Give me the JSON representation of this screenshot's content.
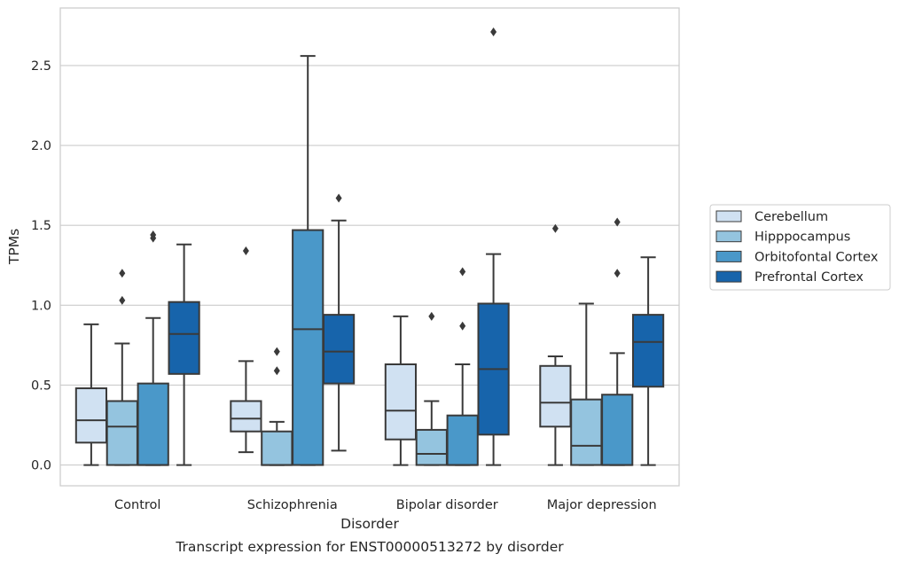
{
  "chart_data": {
    "type": "box",
    "title": "Transcript expression for ENST00000513272 by disorder",
    "xlabel": "Disorder",
    "ylabel": "TPMs",
    "ylim": [
      -0.13,
      2.86
    ],
    "yticks": [
      "0.0",
      "0.5",
      "1.0",
      "1.5",
      "2.0",
      "2.5"
    ],
    "grid": true,
    "legend_position": "right",
    "categories": [
      "Control",
      "Schizophrenia",
      "Bipolar disorder",
      "Major depression"
    ],
    "series": [
      {
        "name": "Cerebellum",
        "color": "#d0e1f2",
        "boxes": [
          {
            "whislo": 0.0,
            "q1": 0.14,
            "med": 0.28,
            "q3": 0.48,
            "whishi": 0.88,
            "fliers": []
          },
          {
            "whislo": 0.08,
            "q1": 0.21,
            "med": 0.29,
            "q3": 0.4,
            "whishi": 0.65,
            "fliers": [
              1.34
            ]
          },
          {
            "whislo": 0.0,
            "q1": 0.16,
            "med": 0.34,
            "q3": 0.63,
            "whishi": 0.93,
            "fliers": []
          },
          {
            "whislo": 0.0,
            "q1": 0.24,
            "med": 0.39,
            "q3": 0.62,
            "whishi": 0.68,
            "fliers": [
              1.48
            ]
          }
        ]
      },
      {
        "name": "Hipppocampus",
        "color": "#94c4df",
        "boxes": [
          {
            "whislo": 0.0,
            "q1": 0.0,
            "med": 0.24,
            "q3": 0.4,
            "whishi": 0.76,
            "fliers": [
              1.03,
              1.2
            ]
          },
          {
            "whislo": 0.0,
            "q1": 0.0,
            "med": 0.0,
            "q3": 0.21,
            "whishi": 0.27,
            "fliers": [
              0.59,
              0.71
            ]
          },
          {
            "whislo": 0.0,
            "q1": 0.0,
            "med": 0.07,
            "q3": 0.22,
            "whishi": 0.4,
            "fliers": [
              0.93
            ]
          },
          {
            "whislo": 0.0,
            "q1": 0.0,
            "med": 0.12,
            "q3": 0.41,
            "whishi": 1.01,
            "fliers": []
          }
        ]
      },
      {
        "name": "Orbitofontal Cortex",
        "color": "#4a98c9",
        "boxes": [
          {
            "whislo": 0.0,
            "q1": 0.0,
            "med": 0.0,
            "q3": 0.51,
            "whishi": 0.92,
            "fliers": [
              1.42,
              1.44
            ]
          },
          {
            "whislo": 0.0,
            "q1": 0.0,
            "med": 0.85,
            "q3": 1.47,
            "whishi": 2.56,
            "fliers": []
          },
          {
            "whislo": 0.0,
            "q1": 0.0,
            "med": 0.0,
            "q3": 0.31,
            "whishi": 0.63,
            "fliers": [
              0.87,
              1.21
            ]
          },
          {
            "whislo": 0.0,
            "q1": 0.0,
            "med": 0.0,
            "q3": 0.44,
            "whishi": 0.7,
            "fliers": [
              1.2,
              1.52
            ]
          }
        ]
      },
      {
        "name": "Prefrontal Cortex",
        "color": "#1764ab",
        "boxes": [
          {
            "whislo": 0.0,
            "q1": 0.57,
            "med": 0.82,
            "q3": 1.02,
            "whishi": 1.38,
            "fliers": []
          },
          {
            "whislo": 0.09,
            "q1": 0.51,
            "med": 0.71,
            "q3": 0.94,
            "whishi": 1.53,
            "fliers": [
              1.67
            ]
          },
          {
            "whislo": 0.0,
            "q1": 0.19,
            "med": 0.6,
            "q3": 1.01,
            "whishi": 1.32,
            "fliers": [
              2.71
            ]
          },
          {
            "whislo": 0.0,
            "q1": 0.49,
            "med": 0.77,
            "q3": 0.94,
            "whishi": 1.3,
            "fliers": []
          }
        ]
      }
    ]
  }
}
